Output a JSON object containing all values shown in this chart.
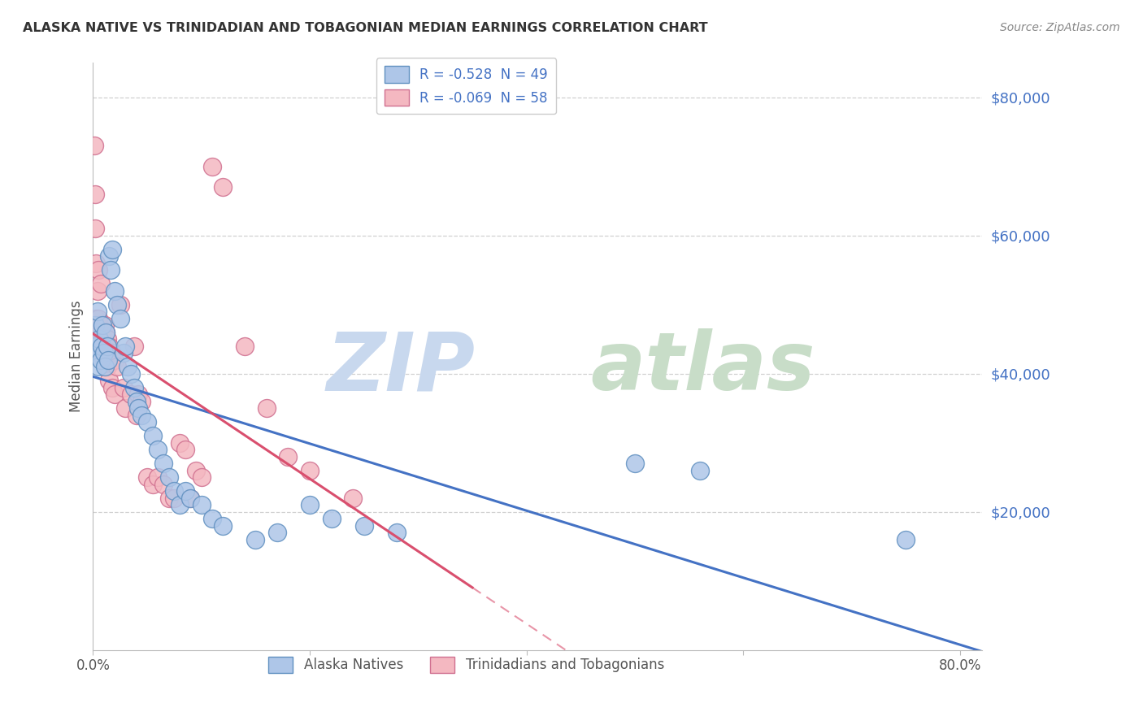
{
  "title": "ALASKA NATIVE VS TRINIDADIAN AND TOBAGONIAN MEDIAN EARNINGS CORRELATION CHART",
  "source": "Source: ZipAtlas.com",
  "ylabel": "Median Earnings",
  "ytick_values": [
    20000,
    40000,
    60000,
    80000
  ],
  "ylim": [
    0,
    85000
  ],
  "xlim": [
    0.0,
    0.82
  ],
  "legend_entries": [
    {
      "label": "R = -0.528  N = 49",
      "color": "#aec6e8"
    },
    {
      "label": "R = -0.069  N = 58",
      "color": "#f4b8c1"
    }
  ],
  "legend_bottom": [
    "Alaska Natives",
    "Trinidadians and Tobagonians"
  ],
  "background_color": "#ffffff",
  "grid_color": "#d0d0d0",
  "alaska_native_points": [
    [
      0.002,
      47000
    ],
    [
      0.003,
      44000
    ],
    [
      0.004,
      49000
    ],
    [
      0.005,
      43000
    ],
    [
      0.005,
      41000
    ],
    [
      0.006,
      45000
    ],
    [
      0.007,
      42000
    ],
    [
      0.008,
      44000
    ],
    [
      0.009,
      47000
    ],
    [
      0.01,
      43000
    ],
    [
      0.011,
      41000
    ],
    [
      0.012,
      46000
    ],
    [
      0.013,
      44000
    ],
    [
      0.014,
      42000
    ],
    [
      0.015,
      57000
    ],
    [
      0.016,
      55000
    ],
    [
      0.018,
      58000
    ],
    [
      0.02,
      52000
    ],
    [
      0.022,
      50000
    ],
    [
      0.025,
      48000
    ],
    [
      0.028,
      43000
    ],
    [
      0.03,
      44000
    ],
    [
      0.032,
      41000
    ],
    [
      0.035,
      40000
    ],
    [
      0.038,
      38000
    ],
    [
      0.04,
      36000
    ],
    [
      0.042,
      35000
    ],
    [
      0.045,
      34000
    ],
    [
      0.05,
      33000
    ],
    [
      0.055,
      31000
    ],
    [
      0.06,
      29000
    ],
    [
      0.065,
      27000
    ],
    [
      0.07,
      25000
    ],
    [
      0.075,
      23000
    ],
    [
      0.08,
      21000
    ],
    [
      0.085,
      23000
    ],
    [
      0.09,
      22000
    ],
    [
      0.1,
      21000
    ],
    [
      0.11,
      19000
    ],
    [
      0.12,
      18000
    ],
    [
      0.15,
      16000
    ],
    [
      0.17,
      17000
    ],
    [
      0.2,
      21000
    ],
    [
      0.22,
      19000
    ],
    [
      0.25,
      18000
    ],
    [
      0.28,
      17000
    ],
    [
      0.5,
      27000
    ],
    [
      0.56,
      26000
    ],
    [
      0.75,
      16000
    ]
  ],
  "trinidadian_points": [
    [
      0.001,
      73000
    ],
    [
      0.002,
      66000
    ],
    [
      0.002,
      61000
    ],
    [
      0.003,
      48000
    ],
    [
      0.003,
      56000
    ],
    [
      0.004,
      52000
    ],
    [
      0.004,
      46000
    ],
    [
      0.005,
      48000
    ],
    [
      0.005,
      55000
    ],
    [
      0.006,
      47000
    ],
    [
      0.006,
      44000
    ],
    [
      0.007,
      46000
    ],
    [
      0.007,
      53000
    ],
    [
      0.008,
      45000
    ],
    [
      0.008,
      44000
    ],
    [
      0.009,
      45000
    ],
    [
      0.009,
      43000
    ],
    [
      0.01,
      45000
    ],
    [
      0.01,
      44000
    ],
    [
      0.011,
      47000
    ],
    [
      0.011,
      43000
    ],
    [
      0.012,
      46000
    ],
    [
      0.012,
      42000
    ],
    [
      0.013,
      45000
    ],
    [
      0.013,
      41000
    ],
    [
      0.015,
      44000
    ],
    [
      0.015,
      39000
    ],
    [
      0.018,
      43000
    ],
    [
      0.018,
      38000
    ],
    [
      0.02,
      42000
    ],
    [
      0.02,
      37000
    ],
    [
      0.022,
      41000
    ],
    [
      0.025,
      50000
    ],
    [
      0.028,
      38000
    ],
    [
      0.03,
      35000
    ],
    [
      0.035,
      37000
    ],
    [
      0.038,
      44000
    ],
    [
      0.04,
      34000
    ],
    [
      0.042,
      37000
    ],
    [
      0.045,
      36000
    ],
    [
      0.05,
      25000
    ],
    [
      0.055,
      24000
    ],
    [
      0.06,
      25000
    ],
    [
      0.065,
      24000
    ],
    [
      0.07,
      22000
    ],
    [
      0.075,
      22000
    ],
    [
      0.08,
      30000
    ],
    [
      0.085,
      29000
    ],
    [
      0.09,
      22000
    ],
    [
      0.095,
      26000
    ],
    [
      0.1,
      25000
    ],
    [
      0.11,
      70000
    ],
    [
      0.12,
      67000
    ],
    [
      0.14,
      44000
    ],
    [
      0.16,
      35000
    ],
    [
      0.18,
      28000
    ],
    [
      0.2,
      26000
    ],
    [
      0.24,
      22000
    ]
  ],
  "alaska_line_color": "#4472c4",
  "trinidadian_line_color": "#d94f6e",
  "alaska_scatter_color": "#aec6e8",
  "trinidadian_scatter_color": "#f4b8c1",
  "alaska_scatter_edge": "#6090c0",
  "trinidadian_scatter_edge": "#d07090"
}
